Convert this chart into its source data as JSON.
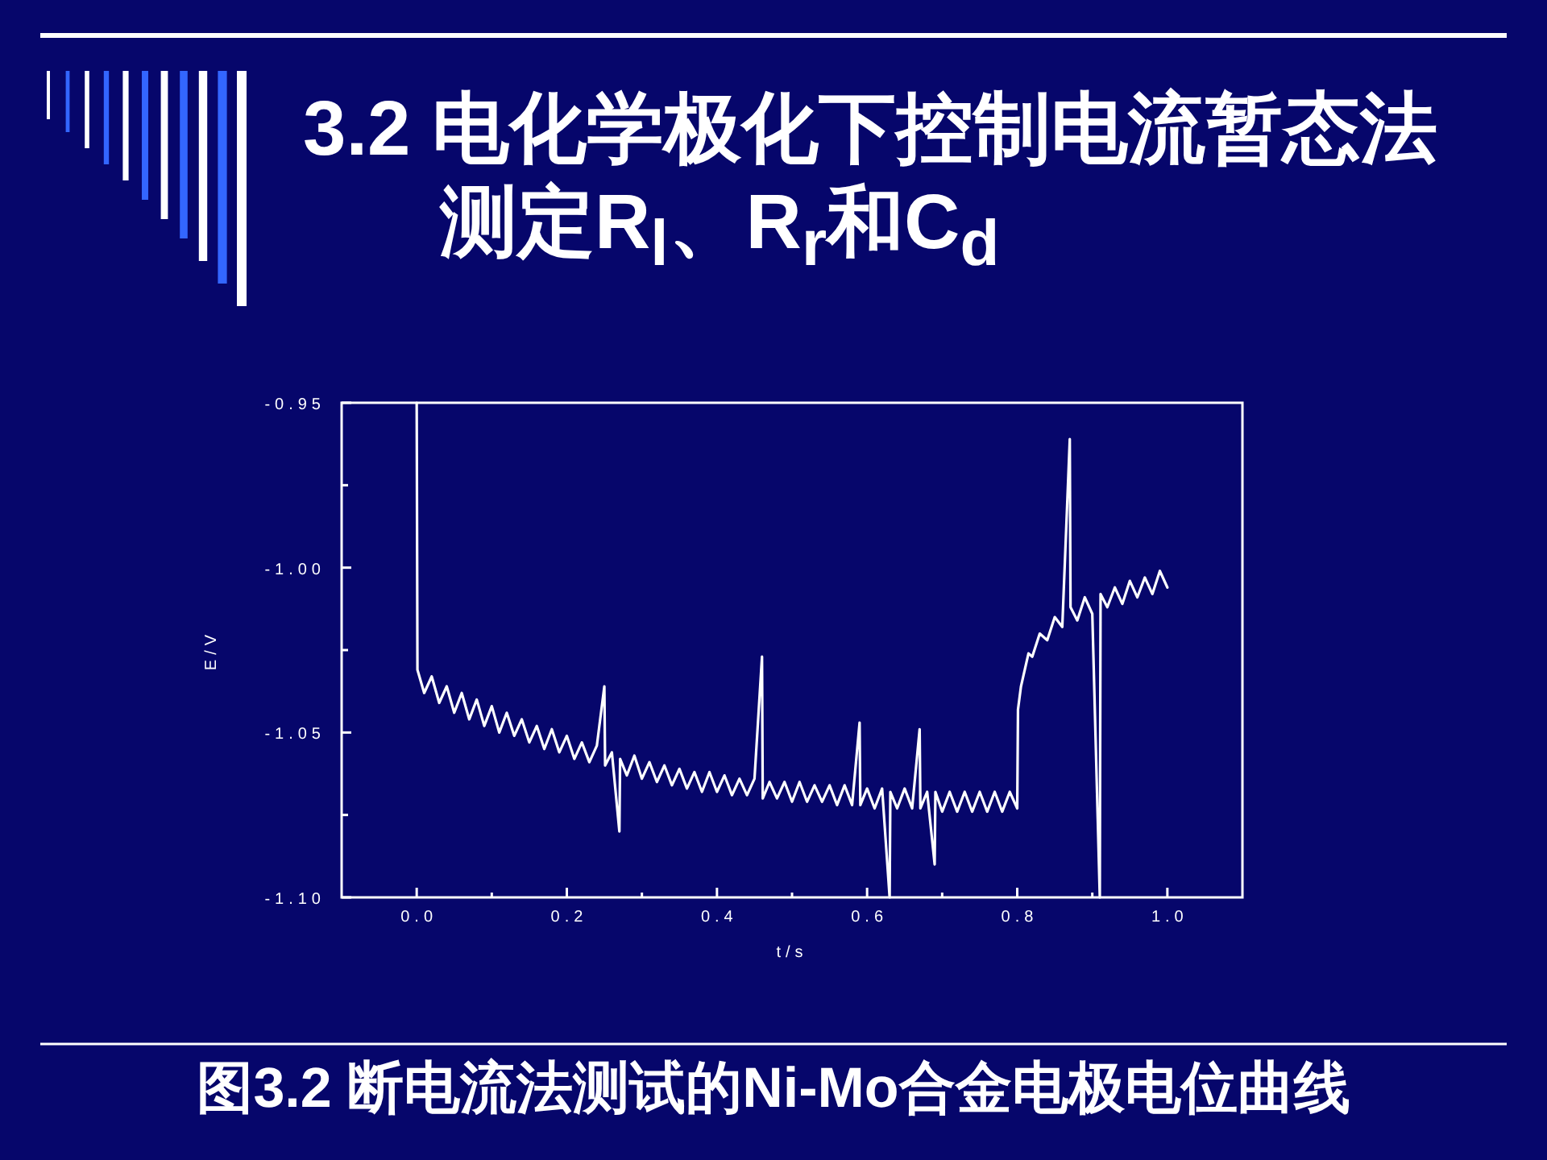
{
  "chart_data": {
    "type": "line",
    "title": "3.2 电化学极化下控制电流暂态法测定R$_{l}$、R$_{r}$和C$_{d}$",
    "xlabel": "t/s",
    "ylabel": "E/V",
    "annotations": [
      "图3.2 断电流法测试的Ni-Mo合金电极电位曲线"
    ],
    "xlim": [
      -0.1,
      1.1
    ],
    "ylim": [
      -1.1,
      -0.95
    ],
    "xticks": [
      {
        "value": 0,
        "label": "0.0"
      },
      {
        "value": 0.1,
        "label": null
      },
      {
        "value": 0.2,
        "label": "0.2"
      },
      {
        "value": 0.3,
        "label": null
      },
      {
        "value": 0.4,
        "label": "0.4"
      },
      {
        "value": 0.5,
        "label": null
      },
      {
        "value": 0.6,
        "label": "0.6"
      },
      {
        "value": 0.7,
        "label": null
      },
      {
        "value": 0.8,
        "label": "0.8"
      },
      {
        "value": 0.9,
        "label": null
      },
      {
        "value": 1,
        "label": "1.0"
      }
    ],
    "yticks": [
      -0.95,
      {
        "value": -0.975,
        "label": null
      },
      {
        "value": -1,
        "label": "-1.00"
      },
      {
        "value": -1.025,
        "label": null
      },
      -1.05,
      {
        "value": -1.075,
        "label": null
      },
      {
        "value": -1.1,
        "label": "-1.10"
      }
    ],
    "x": [
      0,
      0.001,
      0.01,
      0.02,
      0.03,
      0.04,
      0.05,
      0.06,
      0.07,
      0.08,
      0.09,
      0.1,
      0.11,
      0.12,
      0.13,
      0.14,
      0.15,
      0.16,
      0.17,
      0.18,
      0.19,
      0.2,
      0.21,
      0.22,
      0.23,
      0.24,
      0.25,
      0.251,
      0.26,
      0.27,
      0.271,
      0.28,
      0.29,
      0.3,
      0.31,
      0.32,
      0.33,
      0.34,
      0.35,
      0.36,
      0.37,
      0.38,
      0.39,
      0.4,
      0.41,
      0.42,
      0.43,
      0.44,
      0.45,
      0.46,
      0.461,
      0.47,
      0.48,
      0.49,
      0.5,
      0.51,
      0.52,
      0.53,
      0.54,
      0.55,
      0.56,
      0.57,
      0.58,
      0.59,
      0.591,
      0.6,
      0.61,
      0.62,
      0.63,
      0.631,
      0.64,
      0.65,
      0.66,
      0.67,
      0.671,
      0.68,
      0.69,
      0.691,
      0.7,
      0.71,
      0.72,
      0.73,
      0.74,
      0.75,
      0.76,
      0.77,
      0.78,
      0.79,
      0.8,
      0.801,
      0.805,
      0.81,
      0.815,
      0.82,
      0.83,
      0.84,
      0.85,
      0.86,
      0.87,
      0.871,
      0.88,
      0.89,
      0.9,
      0.91,
      0.911,
      0.92,
      0.93,
      0.94,
      0.95,
      0.96,
      0.97,
      0.98,
      0.99,
      1.0
    ],
    "series": [
      {
        "color": "#ffffff",
        "values": [
          -0.95,
          -1.031,
          -1.038,
          -1.033,
          -1.041,
          -1.036,
          -1.044,
          -1.038,
          -1.046,
          -1.04,
          -1.048,
          -1.042,
          -1.05,
          -1.044,
          -1.051,
          -1.046,
          -1.053,
          -1.048,
          -1.055,
          -1.049,
          -1.056,
          -1.051,
          -1.058,
          -1.053,
          -1.059,
          -1.054,
          -1.036,
          -1.06,
          -1.056,
          -1.08,
          -1.058,
          -1.063,
          -1.057,
          -1.064,
          -1.059,
          -1.065,
          -1.06,
          -1.066,
          -1.061,
          -1.067,
          -1.062,
          -1.068,
          -1.062,
          -1.068,
          -1.063,
          -1.069,
          -1.064,
          -1.069,
          -1.064,
          -1.027,
          -1.07,
          -1.065,
          -1.07,
          -1.065,
          -1.071,
          -1.065,
          -1.071,
          -1.066,
          -1.071,
          -1.066,
          -1.072,
          -1.066,
          -1.072,
          -1.047,
          -1.072,
          -1.067,
          -1.073,
          -1.067,
          -1.1,
          -1.068,
          -1.073,
          -1.067,
          -1.073,
          -1.049,
          -1.073,
          -1.068,
          -1.09,
          -1.068,
          -1.074,
          -1.068,
          -1.074,
          -1.068,
          -1.074,
          -1.068,
          -1.074,
          -1.068,
          -1.074,
          -1.068,
          -1.073,
          -1.043,
          -1.036,
          -1.031,
          -1.026,
          -1.027,
          -1.02,
          -1.022,
          -1.015,
          -1.018,
          -0.961,
          -1.012,
          -1.016,
          -1.009,
          -1.014,
          -1.1,
          -1.008,
          -1.012,
          -1.006,
          -1.011,
          -1.004,
          -1.009,
          -1.003,
          -1.008,
          -1.001,
          -1.006
        ]
      }
    ]
  }
}
